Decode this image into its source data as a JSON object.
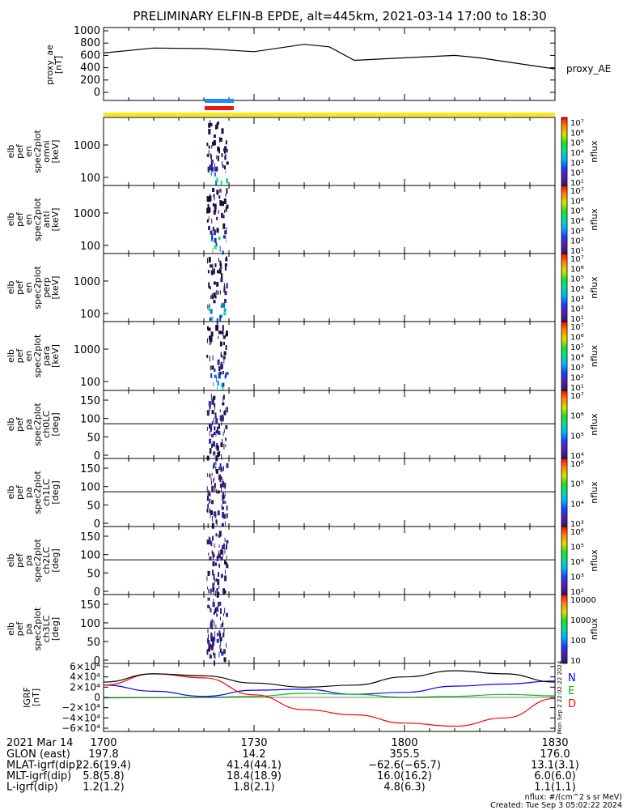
{
  "title": "PRELIMINARY ELFIN-B EPDE, alt=445km, 2021-03-14 17:00 to 18:30",
  "colors": {
    "line": "#000000",
    "bar_blue": "#1e8cf0",
    "bar_red": "#e81c10",
    "bar_yellow": "#f8e81c",
    "grf_n": "#0000ff",
    "grf_e": "#00c000",
    "grf_d": "#ff0000",
    "grf_total": "#000000"
  },
  "time_range": [
    "17:00",
    "18:30"
  ],
  "panels": [
    {
      "id": "proxy_ae",
      "ylabel": [
        "proxy_ae",
        "[nT]"
      ],
      "yticks": [
        "1000",
        "800",
        "600",
        "400",
        "200",
        "0"
      ],
      "series_label": "proxy_AE"
    },
    {
      "id": "omni",
      "ylabel": [
        "elb",
        "pef",
        "en",
        "spec2plot",
        "omni",
        "[keV]"
      ],
      "yticks": [
        "1000",
        "100"
      ],
      "colorbar": {
        "label": "nflux",
        "ticks": [
          "10⁷",
          "10⁶",
          "10⁵",
          "10⁴",
          "10³",
          "10²",
          "10¹"
        ]
      }
    },
    {
      "id": "anti",
      "ylabel": [
        "elb",
        "pef",
        "en",
        "spec2plot",
        "anti",
        "[keV]"
      ],
      "yticks": [
        "1000",
        "100"
      ],
      "colorbar": {
        "label": "nflux",
        "ticks": [
          "10⁷",
          "10⁶",
          "10⁵",
          "10⁴",
          "10³",
          "10²",
          "10¹"
        ]
      }
    },
    {
      "id": "perp",
      "ylabel": [
        "elb",
        "pef",
        "en",
        "spec2plot",
        "perp",
        "[keV]"
      ],
      "yticks": [
        "1000",
        "100"
      ],
      "colorbar": {
        "label": "nflux",
        "ticks": [
          "10⁷",
          "10⁶",
          "10⁵",
          "10⁴",
          "10³",
          "10²",
          "10¹"
        ]
      }
    },
    {
      "id": "para",
      "ylabel": [
        "elb",
        "pef",
        "en",
        "spec2plot",
        "para",
        "[keV]"
      ],
      "yticks": [
        "1000",
        "100"
      ],
      "colorbar": {
        "label": "nflux",
        "ticks": [
          "10⁷",
          "10⁶",
          "10⁵",
          "10⁴",
          "10³",
          "10²",
          "10¹"
        ]
      }
    },
    {
      "id": "ch0LC",
      "ylabel": [
        "elb",
        "pef",
        "pa",
        "spec2plot",
        "ch0LC",
        "[deg]"
      ],
      "yticks": [
        "150",
        "100",
        "50",
        "0"
      ],
      "colorbar": {
        "label": "nflux",
        "ticks": [
          "10⁷",
          "10⁶",
          "10⁵",
          "10⁴"
        ]
      }
    },
    {
      "id": "ch1LC",
      "ylabel": [
        "elb",
        "pef",
        "pa",
        "spec2plot",
        "ch1LC",
        "[deg]"
      ],
      "yticks": [
        "150",
        "100",
        "50",
        "0"
      ],
      "colorbar": {
        "label": "nflux",
        "ticks": [
          "10⁶",
          "10⁵",
          "10⁴",
          "10³"
        ]
      }
    },
    {
      "id": "ch2LC",
      "ylabel": [
        "elb",
        "pef",
        "pa",
        "spec2plot",
        "ch2LC",
        "[deg]"
      ],
      "yticks": [
        "150",
        "100",
        "50",
        "0"
      ],
      "colorbar": {
        "label": "nflux",
        "ticks": [
          "10⁶",
          "10⁵",
          "10⁴",
          "10³",
          "10²"
        ]
      }
    },
    {
      "id": "ch3LC",
      "ylabel": [
        "elb",
        "pef",
        "pa",
        "spec2plot",
        "ch3LC",
        "[deg]"
      ],
      "yticks": [
        "150",
        "100",
        "50",
        "0"
      ],
      "colorbar": {
        "label": "nflux",
        "ticks": [
          "10000",
          "1000",
          "100",
          "10"
        ]
      }
    },
    {
      "id": "igrf",
      "ylabel": [
        "IGRF",
        "[nT]"
      ],
      "yticks": [
        "6×10⁴",
        "4×10⁴",
        "2×10⁴",
        "0",
        "−2×10⁴",
        "−4×10⁴",
        "−6×10⁴"
      ],
      "legend": [
        "N",
        "E",
        "D"
      ]
    }
  ],
  "chart_data": {
    "type": "line",
    "title": "PRELIMINARY ELFIN-B EPDE, alt=445km, 2021-03-14 17:00 to 18:30",
    "proxy_ae": {
      "t_min": [
        0,
        10,
        20,
        30,
        40,
        45,
        50,
        60,
        70,
        75,
        80,
        90
      ],
      "values": [
        640,
        720,
        710,
        660,
        780,
        740,
        520,
        560,
        600,
        560,
        500,
        380
      ],
      "ylim": [
        0,
        1000
      ]
    },
    "igrf": {
      "t_min": [
        0,
        10,
        20,
        30,
        40,
        50,
        60,
        70,
        80,
        90
      ],
      "series": [
        {
          "name": "N",
          "color": "#0000ff",
          "values": [
            24000,
            12000,
            2000,
            14000,
            16000,
            6000,
            10000,
            22000,
            26000,
            32000
          ]
        },
        {
          "name": "E",
          "color": "#00c000",
          "values": [
            -1000,
            -500,
            0,
            2000,
            8000,
            6000,
            0,
            2000,
            6000,
            3000
          ]
        },
        {
          "name": "D",
          "color": "#ff0000",
          "values": [
            24000,
            46000,
            38000,
            5000,
            -24000,
            -34000,
            -50000,
            -56000,
            -40000,
            -2000
          ]
        },
        {
          "name": "",
          "color": "#000000",
          "values": [
            30000,
            46000,
            42000,
            28000,
            20000,
            24000,
            40000,
            52000,
            46000,
            30000
          ]
        }
      ],
      "ylim": [
        -60000,
        60000
      ]
    },
    "science_zones": [
      "blue",
      "red",
      "yellow"
    ],
    "spectrogram_activity_minutes": [
      20.5,
      24.5
    ],
    "colorbar_label": "nflux"
  },
  "footer": {
    "date": "2021 Mar 14",
    "times": [
      "1700",
      "1730",
      "1800",
      "1830"
    ],
    "rows": [
      {
        "label": "GLON (east)",
        "values": [
          "197.8",
          "14.2",
          "355.5",
          "176.0"
        ]
      },
      {
        "label": "MLAT-igrf(dip)",
        "values": [
          "22.6(19.4)",
          "41.4(44.1)",
          "−62.6(−65.7)",
          "13.1(3.1)"
        ]
      },
      {
        "label": "MLT-igrf(dip)",
        "values": [
          "5.8(5.8)",
          "18.4(18.9)",
          "16.0(16.2)",
          "6.0(6.0)"
        ]
      },
      {
        "label": "L-igrf(dip)",
        "values": [
          "1.2(1.2)",
          "1.8(2.1)",
          "4.8(6.3)",
          "1.1(1.1)"
        ]
      }
    ],
    "units_note": "nflux: #/(cm^2 s sr MeV)",
    "created": "Created: Tue Sep  3 05:02:22 2024",
    "side_stamp": "Mon Sep  2 22:02:22 2024"
  }
}
